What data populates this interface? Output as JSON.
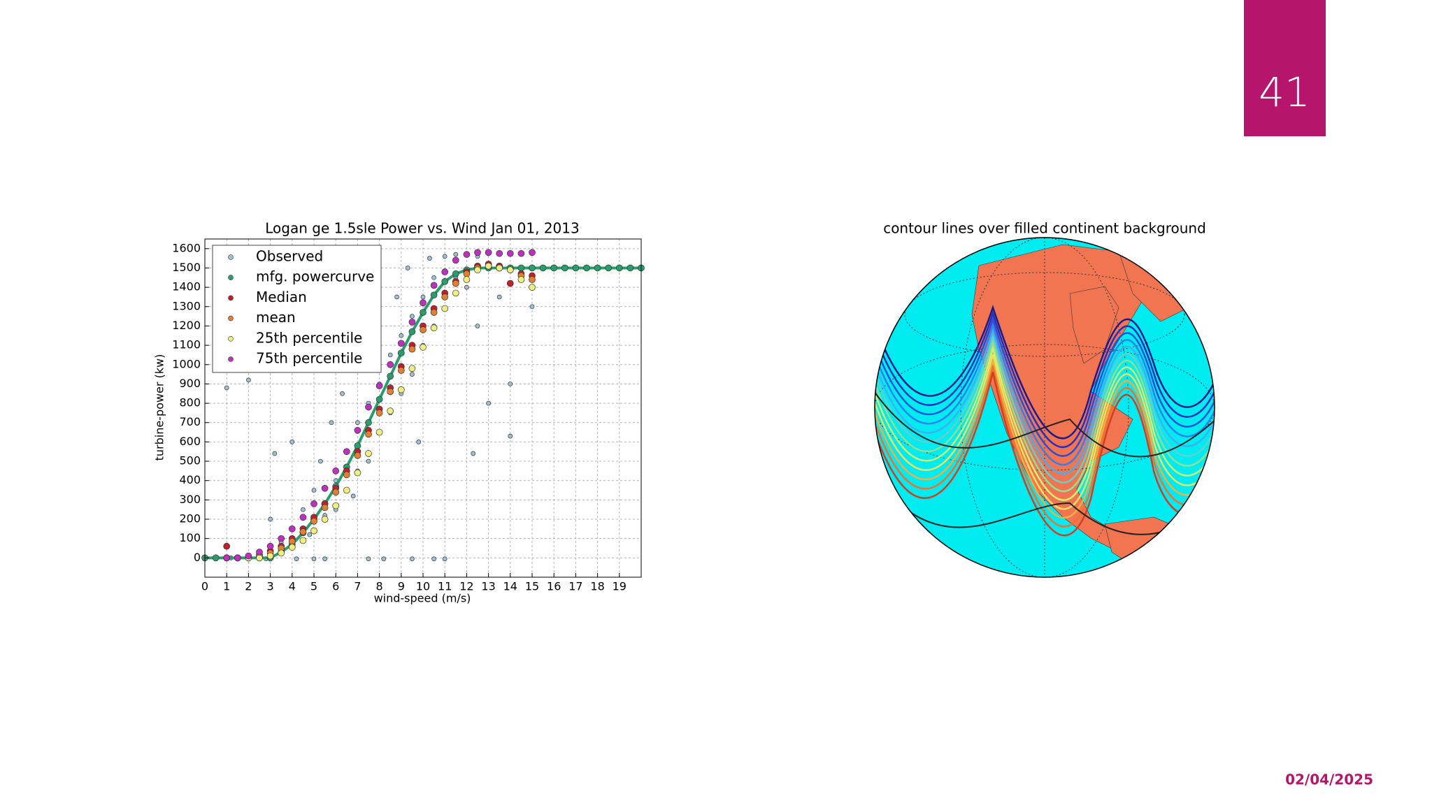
{
  "slide": {
    "page_number": "41",
    "date": "02/04/2025"
  },
  "chart_data": {
    "type": "scatter",
    "title": "Logan ge 1.5sle Power vs. Wind Jan 01, 2013",
    "x_label": "wind-speed (m/s)",
    "y_label": "turbine-power (kw)",
    "xlim": [
      0,
      20
    ],
    "xticks": [
      0,
      1,
      2,
      3,
      4,
      5,
      6,
      7,
      8,
      9,
      10,
      11,
      12,
      13,
      14,
      15,
      16,
      17,
      18,
      19
    ],
    "ylim": [
      -100,
      1650
    ],
    "yticks": [
      0,
      100,
      200,
      300,
      400,
      500,
      600,
      700,
      800,
      900,
      1000,
      1100,
      1200,
      1300,
      1400,
      1500,
      1600
    ],
    "grid": true,
    "legend": "upper-left",
    "series": [
      {
        "name": "Observed",
        "color": "#9cc3d5",
        "x": [
          1,
          1.2,
          2,
          2.5,
          3,
          3,
          3.2,
          3.5,
          4,
          4,
          4.2,
          4.5,
          4.8,
          5,
          5,
          5.3,
          5.5,
          5.8,
          6,
          6,
          6.3,
          6.5,
          6.8,
          7,
          7,
          7.2,
          7.5,
          7.5,
          7.8,
          8,
          8,
          8.2,
          8.5,
          8.5,
          8.8,
          9,
          9,
          9.3,
          9.5,
          9.5,
          9.8,
          10,
          10,
          10.3,
          10.5,
          10.5,
          11,
          11,
          11,
          11.5,
          11.5,
          12,
          12,
          12.3,
          12.5,
          12.5,
          13,
          13,
          13.5,
          14,
          14,
          14.5,
          15,
          2.8,
          5.5,
          7.5,
          9.5,
          10.5
        ],
        "values": [
          880,
          0,
          920,
          30,
          10,
          200,
          540,
          80,
          150,
          600,
          -5,
          250,
          120,
          350,
          -5,
          500,
          220,
          700,
          400,
          250,
          850,
          550,
          320,
          700,
          450,
          1000,
          800,
          500,
          1200,
          900,
          650,
          -5,
          1050,
          750,
          1350,
          1150,
          850,
          1500,
          1250,
          950,
          600,
          1350,
          1100,
          1550,
          1450,
          1200,
          1560,
          1350,
          -5,
          1570,
          1450,
          1570,
          1400,
          540,
          1560,
          1200,
          1500,
          800,
          1350,
          900,
          630,
          1450,
          1300,
          -5,
          -5,
          -5,
          -5,
          -5
        ]
      },
      {
        "name": "mfg. powercurve",
        "color": "#2a9d6e",
        "x": [
          0,
          0.5,
          1,
          1.5,
          2,
          2.5,
          3,
          3.5,
          4,
          4.5,
          5,
          5.5,
          6,
          6.5,
          7,
          7.5,
          8,
          8.5,
          9,
          9.5,
          10,
          10.5,
          11,
          11.5,
          12,
          12.5,
          13,
          13.5,
          14,
          14.5,
          15,
          15.5,
          16,
          16.5,
          17,
          17.5,
          18,
          18.5,
          19,
          19.5,
          20
        ],
        "values": [
          0,
          0,
          0,
          0,
          0,
          0,
          0,
          30,
          70,
          130,
          200,
          280,
          370,
          470,
          580,
          700,
          820,
          940,
          1060,
          1170,
          1270,
          1360,
          1430,
          1470,
          1490,
          1500,
          1500,
          1500,
          1500,
          1500,
          1500,
          1500,
          1500,
          1500,
          1500,
          1500,
          1500,
          1500,
          1500,
          1500,
          1500
        ]
      },
      {
        "name": "Median",
        "color": "#c0202a",
        "x": [
          1,
          1.5,
          2,
          2.5,
          3,
          3.5,
          4,
          4.5,
          5,
          5.5,
          6,
          6.5,
          7,
          7.5,
          8,
          8.5,
          9,
          9.5,
          10,
          10.5,
          11,
          11.5,
          12,
          12.5,
          13,
          13.5,
          14,
          14.5,
          15
        ],
        "values": [
          60,
          0,
          5,
          15,
          35,
          60,
          100,
          150,
          210,
          280,
          360,
          450,
          550,
          660,
          770,
          880,
          990,
          1100,
          1200,
          1290,
          1370,
          1430,
          1480,
          1510,
          1520,
          1510,
          1420,
          1470,
          1460
        ]
      },
      {
        "name": "mean",
        "color": "#e08030",
        "x": [
          1,
          1.5,
          2,
          2.5,
          3,
          3.5,
          4,
          4.5,
          5,
          5.5,
          6,
          6.5,
          7,
          7.5,
          8,
          8.5,
          9,
          9.5,
          10,
          10.5,
          11,
          11.5,
          12,
          12.5,
          13,
          13.5,
          14,
          14.5,
          15
        ],
        "values": [
          0,
          0,
          0,
          10,
          25,
          50,
          85,
          135,
          190,
          260,
          340,
          430,
          530,
          640,
          750,
          860,
          970,
          1080,
          1180,
          1270,
          1350,
          1420,
          1470,
          1500,
          1510,
          1500,
          1490,
          1460,
          1440
        ]
      },
      {
        "name": "25th percentile",
        "color": "#f0f080",
        "x": [
          1,
          1.5,
          2,
          2.5,
          3,
          3.5,
          4,
          4.5,
          5,
          5.5,
          6,
          6.5,
          7,
          7.5,
          8,
          8.5,
          9,
          9.5,
          10,
          10.5,
          11,
          11.5,
          12,
          12.5,
          13,
          13.5,
          14,
          14.5,
          15
        ],
        "values": [
          0,
          0,
          0,
          0,
          10,
          25,
          55,
          90,
          140,
          200,
          270,
          350,
          440,
          540,
          650,
          760,
          870,
          980,
          1090,
          1190,
          1290,
          1370,
          1440,
          1490,
          1510,
          1500,
          1490,
          1440,
          1400
        ]
      },
      {
        "name": "75th percentile",
        "color": "#c030c0",
        "x": [
          1,
          1.5,
          2,
          2.5,
          3,
          3.5,
          4,
          4.5,
          5,
          5.5,
          6,
          6.5,
          7,
          7.5,
          8,
          8.5,
          9,
          9.5,
          10,
          10.5,
          11,
          11.5,
          12,
          12.5,
          13,
          13.5,
          14,
          14.5,
          15
        ],
        "values": [
          0,
          0,
          10,
          30,
          60,
          100,
          150,
          210,
          280,
          360,
          450,
          550,
          660,
          780,
          890,
          1000,
          1110,
          1220,
          1320,
          1410,
          1480,
          1540,
          1570,
          1580,
          1580,
          1575,
          1575,
          1575,
          1580
        ]
      }
    ]
  },
  "map": {
    "title": "contour lines over filled continent background"
  }
}
